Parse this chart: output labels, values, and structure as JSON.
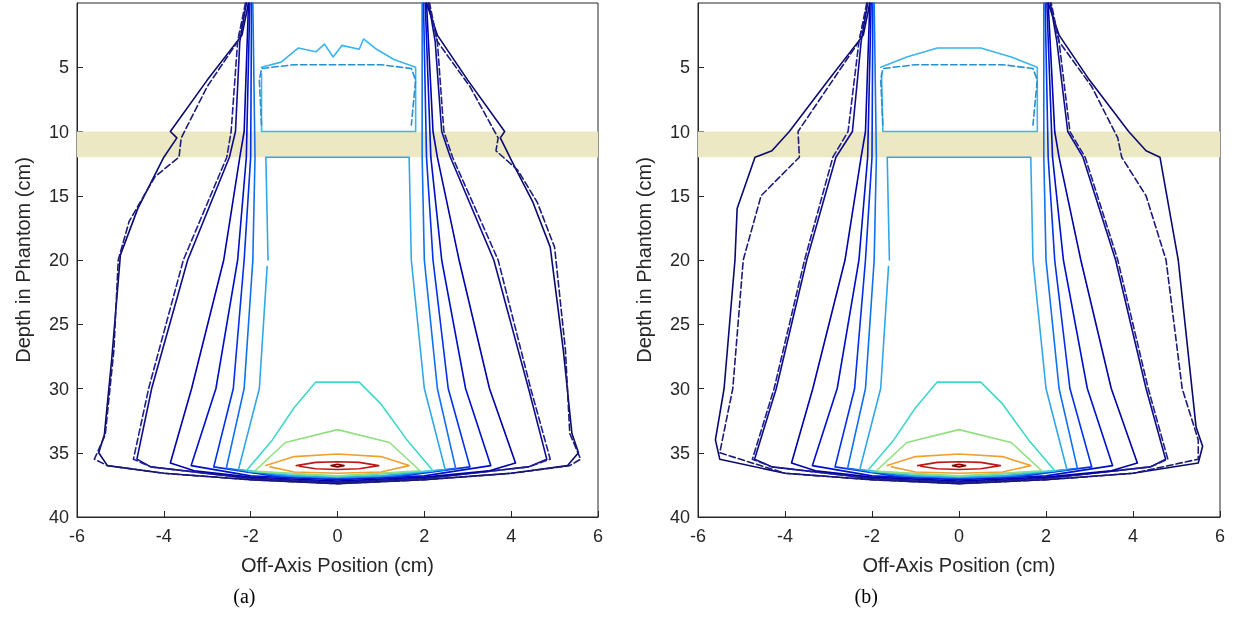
{
  "chart_data": [
    {
      "type": "line",
      "xlabel": "Off-Axis Position (cm)",
      "ylabel": "Depth in Phantom (cm)",
      "annotations": [
        "(a)"
      ],
      "xlim": [
        -6,
        6
      ],
      "xticks": [
        -6,
        -4,
        -2,
        0,
        2,
        4,
        6
      ],
      "ylim": [
        40,
        0
      ],
      "yticks": [
        5,
        10,
        15,
        20,
        25,
        30,
        35,
        40
      ],
      "grid": false,
      "marker": "none",
      "bands": [
        {
          "axis": "y",
          "from": 10,
          "to": 12,
          "color": "#ece8c4"
        }
      ],
      "series": [
        {
          "color": "#0a0a6e",
          "line_style": "solid",
          "x": [
            -2.05,
            -2.2,
            -3.0,
            -3.85,
            -3.7,
            -4.0,
            -4.6,
            -5.0,
            -5.2,
            -5.37,
            -5.5,
            -5.3,
            -4,
            -2,
            0,
            2,
            4,
            5.3,
            5.55,
            5.4,
            5.2,
            4.9,
            4.5,
            4.0,
            3.75,
            3.85,
            3.0,
            2.3,
            2.05
          ],
          "values": [
            0,
            2.5,
            6,
            10,
            10.5,
            12,
            16,
            19.6,
            27.7,
            33.6,
            35,
            36,
            36.6,
            37.1,
            37.4,
            37.1,
            36.6,
            36,
            35,
            33.5,
            27,
            19,
            15.5,
            12.2,
            10.5,
            10,
            6,
            2.5,
            0
          ]
        },
        {
          "color": "#1c1c78",
          "line_style": "dashed",
          "x": [
            -2.1,
            -2.3,
            -3.0,
            -3.6,
            -3.65,
            -4.2,
            -4.8,
            -5.05,
            -5.15,
            -5.35,
            -5.6,
            -5.3,
            -4,
            -2,
            0,
            2,
            4,
            5.35,
            5.6,
            5.35,
            5.25,
            5.0,
            4.6,
            4.15,
            3.65,
            3.7,
            3.05,
            2.3,
            2.1
          ],
          "values": [
            0,
            3,
            6.5,
            10.5,
            12,
            13.5,
            17,
            20,
            27,
            33.6,
            35.5,
            36,
            36.6,
            37.1,
            37.4,
            37.1,
            36.6,
            36,
            35.5,
            33.5,
            27,
            19,
            15.5,
            13,
            11.5,
            10.5,
            6.5,
            3,
            0
          ]
        },
        {
          "color": "#0d0d8a",
          "line_style": "solid",
          "x": [
            -2.1,
            -2.25,
            -2.35,
            -2.49,
            -3.45,
            -4.28,
            -4.62,
            -4.3,
            -2,
            0,
            2,
            4.4,
            4.82,
            4.4,
            3.6,
            2.6,
            2.4,
            2.25,
            2.1
          ],
          "values": [
            0,
            3,
            10,
            12,
            20,
            30,
            35.5,
            36.1,
            37,
            37.3,
            37,
            36.1,
            35.5,
            30,
            20,
            12,
            10,
            3,
            0
          ]
        },
        {
          "color": "#202094",
          "line_style": "dashed",
          "x": [
            -2.12,
            -2.3,
            -2.45,
            -2.55,
            -3.55,
            -4.35,
            -4.7,
            -4.3,
            -2,
            0,
            2,
            4.4,
            4.9,
            4.45,
            3.7,
            2.65,
            2.45,
            2.3,
            2.12
          ],
          "values": [
            0,
            3,
            10,
            12,
            20,
            30,
            35.5,
            36.1,
            37,
            37.3,
            37,
            36.1,
            35.5,
            30,
            20,
            12,
            10,
            3,
            0
          ]
        },
        {
          "color": "#0000a8",
          "line_style": "solid",
          "x": [
            -2.05,
            -2.15,
            -2.25,
            -2.62,
            -3.36,
            -3.85,
            -3.3,
            -2,
            0,
            2,
            3.5,
            4.1,
            3.5,
            2.8,
            2.3,
            2.2,
            2.05
          ],
          "values": [
            0,
            10,
            12,
            20,
            30,
            35.8,
            36.4,
            36.9,
            37.2,
            36.9,
            36.4,
            35.8,
            30,
            20,
            12,
            10,
            0
          ]
        },
        {
          "color": "#0010c8",
          "line_style": "solid",
          "x": [
            -2.02,
            -2.1,
            -2.3,
            -2.8,
            -3.37,
            -2,
            0,
            2,
            3.53,
            2.95,
            2.4,
            2.15,
            2.02
          ],
          "values": [
            0,
            12,
            20,
            30,
            36,
            36.8,
            37.1,
            36.8,
            36,
            30,
            20,
            12,
            0
          ]
        },
        {
          "color": "#0030e8",
          "line_style": "solid",
          "x": [
            -1.98,
            -2.0,
            -2.15,
            -2.4,
            -2.85,
            -1.5,
            0,
            1.5,
            3.05,
            2.55,
            2.2,
            2.05,
            1.98
          ],
          "values": [
            0,
            12,
            20,
            30,
            36.1,
            36.8,
            37.0,
            36.8,
            36.1,
            30,
            20,
            12,
            0
          ]
        },
        {
          "color": "#1070f0",
          "line_style": "solid",
          "x": [
            -1.95,
            -1.9,
            -1.95,
            -2.15,
            -2.56,
            -1.3,
            0,
            1.3,
            2.72,
            2.3,
            2.0,
            1.95,
            1.95
          ],
          "values": [
            0,
            12,
            20,
            30,
            36.2,
            36.8,
            36.95,
            36.8,
            36.2,
            30,
            20,
            12,
            0
          ]
        },
        {
          "color": "#30a8e8",
          "line_style": "solid",
          "x": [
            -1.6,
            -1.65,
            1.65,
            1.7,
            2.0,
            2.48,
            1,
            0,
            -1,
            -2.28,
            -1.8,
            -1.62
          ],
          "values": [
            20,
            12,
            12,
            20,
            30,
            36.3,
            36.8,
            36.9,
            36.8,
            36.3,
            30,
            20.5
          ]
        },
        {
          "color": "#3cb4ec",
          "line_style": "solid",
          "x": [
            -1.75,
            -1.3,
            -0.9,
            -0.5,
            -0.3,
            -0.1,
            0.1,
            0.5,
            0.6,
            0.9,
            1.3,
            1.8,
            1.8,
            -1.75,
            -1.75
          ],
          "values": [
            5,
            4.6,
            3.5,
            3.8,
            3.2,
            4.2,
            3.3,
            3.6,
            2.8,
            3.6,
            4.4,
            5,
            10,
            10,
            5.5
          ]
        },
        {
          "color": "#2890d0",
          "line_style": "dashed",
          "x": [
            -1.75,
            -1.8,
            -1.75,
            -1,
            0,
            1,
            1.7,
            1.8,
            1.7
          ],
          "values": [
            9.5,
            6,
            5.1,
            4.8,
            4.8,
            4.8,
            5.1,
            6,
            9.5
          ]
        },
        {
          "color": "#40d8c8",
          "line_style": "solid",
          "x": [
            -2.1,
            -1.5,
            -1.0,
            -0.5,
            0.5,
            1.0,
            1.6,
            2.2,
            0,
            -2.05
          ],
          "values": [
            36.4,
            34,
            31.5,
            29.5,
            29.5,
            31.2,
            34,
            36.4,
            36.85,
            36.45
          ]
        },
        {
          "color": "#90e080",
          "line_style": "solid",
          "x": [
            -1.9,
            -1.2,
            0,
            1.2,
            1.9,
            0,
            -1.85
          ],
          "values": [
            36.4,
            34.2,
            33.2,
            34.2,
            36.4,
            36.8,
            36.45
          ]
        },
        {
          "color": "#f0a030",
          "line_style": "solid",
          "x": [
            -1.65,
            -1,
            0,
            1,
            1.65,
            1,
            0,
            -1,
            -1.55
          ],
          "values": [
            36,
            35.3,
            35.1,
            35.3,
            36,
            36.5,
            36.6,
            36.5,
            36.1
          ]
        },
        {
          "color": "#c01818",
          "line_style": "solid",
          "x": [
            -0.95,
            -0.5,
            0,
            0.5,
            0.95,
            0.5,
            0,
            -0.5,
            -0.88
          ],
          "values": [
            36,
            35.75,
            35.7,
            35.75,
            36,
            36.25,
            36.3,
            36.25,
            36.05
          ]
        },
        {
          "color": "#800000",
          "line_style": "solid",
          "x": [
            -0.15,
            0,
            0.15,
            0,
            -0.12
          ],
          "values": [
            36,
            35.9,
            36,
            36.1,
            36.03
          ]
        }
      ]
    },
    {
      "type": "line",
      "xlabel": "Off-Axis Position (cm)",
      "ylabel": "Depth in Phantom (cm)",
      "annotations": [
        "(b)"
      ],
      "xlim": [
        -6,
        6
      ],
      "xticks": [
        -6,
        -4,
        -2,
        0,
        2,
        4,
        6
      ],
      "ylim": [
        40,
        0
      ],
      "yticks": [
        5,
        10,
        15,
        20,
        25,
        30,
        35,
        40
      ],
      "grid": false,
      "marker": "none",
      "bands": [
        {
          "axis": "y",
          "from": 10,
          "to": 12,
          "color": "#ece8c4"
        }
      ],
      "series": [
        {
          "color": "#0a0a6e",
          "line_style": "solid",
          "x": [
            -2.05,
            -2.2,
            -3.0,
            -3.9,
            -4.3,
            -4.69,
            -5.1,
            -5.15,
            -5.4,
            -5.6,
            -5.5,
            -4,
            -2,
            0,
            2,
            4,
            5.5,
            5.6,
            5.45,
            5.04,
            4.62,
            4.3,
            3.9,
            3.0,
            2.3,
            2.05
          ],
          "values": [
            0,
            2.5,
            6,
            10,
            11.5,
            12,
            16,
            20,
            30,
            34,
            35.5,
            36.6,
            37.1,
            37.4,
            37.1,
            36.6,
            35.8,
            34.5,
            33,
            20,
            12,
            11.5,
            10,
            6,
            2.5,
            0
          ]
        },
        {
          "color": "#1c1c78",
          "line_style": "dashed",
          "x": [
            -2.1,
            -2.3,
            -3.0,
            -3.7,
            -3.67,
            -4.55,
            -4.96,
            -5.2,
            -5.5,
            -4,
            -2,
            0,
            2,
            4,
            5.5,
            5.5,
            5.13,
            4.76,
            4.3,
            3.74,
            3.65,
            3.05,
            2.3,
            2.1
          ],
          "values": [
            0,
            3,
            6.5,
            10,
            12,
            15,
            20,
            30,
            35,
            36.6,
            37.1,
            37.4,
            37.1,
            36.6,
            35.5,
            34,
            30,
            20,
            15,
            12,
            10.5,
            6.5,
            3,
            0
          ]
        },
        {
          "color": "#0d0d8a",
          "line_style": "solid",
          "x": [
            -2.1,
            -2.25,
            -2.45,
            -2.83,
            -3.5,
            -4.2,
            -4.7,
            -4.3,
            -2,
            0,
            2,
            4.4,
            4.75,
            4.3,
            3.6,
            2.85,
            2.5,
            2.25,
            2.1
          ],
          "values": [
            0,
            3,
            10,
            12,
            20,
            30,
            35.5,
            36.1,
            37,
            37.3,
            37,
            36.1,
            35.5,
            30,
            20,
            12,
            10,
            3,
            0
          ]
        },
        {
          "color": "#202094",
          "line_style": "dashed",
          "x": [
            -2.12,
            -2.3,
            -2.55,
            -2.9,
            -3.55,
            -4.25,
            -4.75,
            -4.3,
            -2,
            0,
            2,
            4.4,
            4.8,
            4.35,
            3.65,
            2.9,
            2.55,
            2.3,
            2.12
          ],
          "values": [
            0,
            3,
            10,
            12,
            20,
            30,
            35.5,
            36.1,
            37,
            37.3,
            37,
            36.1,
            35.5,
            30,
            20,
            12,
            10,
            3,
            0
          ]
        },
        {
          "color": "#0000a8",
          "line_style": "solid",
          "x": [
            -2.05,
            -2.15,
            -2.25,
            -2.62,
            -3.36,
            -3.85,
            -3.3,
            -2,
            0,
            2,
            3.5,
            4.1,
            3.5,
            2.8,
            2.3,
            2.2,
            2.05
          ],
          "values": [
            0,
            10,
            12,
            20,
            30,
            35.8,
            36.4,
            36.9,
            37.2,
            36.9,
            36.4,
            35.8,
            30,
            20,
            12,
            10,
            0
          ]
        },
        {
          "color": "#0010c8",
          "line_style": "solid",
          "x": [
            -2.02,
            -2.1,
            -2.3,
            -2.8,
            -3.37,
            -2,
            0,
            2,
            3.53,
            2.95,
            2.4,
            2.15,
            2.02
          ],
          "values": [
            0,
            12,
            20,
            30,
            36,
            36.8,
            37.1,
            36.8,
            36,
            30,
            20,
            12,
            0
          ]
        },
        {
          "color": "#0030e8",
          "line_style": "solid",
          "x": [
            -1.98,
            -2.0,
            -2.15,
            -2.4,
            -2.85,
            -1.5,
            0,
            1.5,
            3.05,
            2.55,
            2.2,
            2.05,
            1.98
          ],
          "values": [
            0,
            12,
            20,
            30,
            36.1,
            36.8,
            37.0,
            36.8,
            36.1,
            30,
            20,
            12,
            0
          ]
        },
        {
          "color": "#1070f0",
          "line_style": "solid",
          "x": [
            -1.95,
            -1.9,
            -1.95,
            -2.15,
            -2.56,
            -1.3,
            0,
            1.3,
            2.72,
            2.3,
            2.0,
            1.95,
            1.95
          ],
          "values": [
            0,
            12,
            20,
            30,
            36.2,
            36.8,
            36.95,
            36.8,
            36.2,
            30,
            20,
            12,
            0
          ]
        },
        {
          "color": "#30a8e8",
          "line_style": "solid",
          "x": [
            -1.6,
            -1.65,
            1.65,
            1.7,
            2.0,
            2.48,
            1,
            0,
            -1,
            -2.28,
            -1.8,
            -1.62
          ],
          "values": [
            20,
            12,
            12,
            20,
            30,
            36.3,
            36.8,
            36.9,
            36.8,
            36.3,
            30,
            20.5
          ]
        },
        {
          "color": "#3cb4ec",
          "line_style": "solid",
          "x": [
            -1.8,
            -1.2,
            -0.5,
            0.5,
            1.2,
            1.8,
            1.8,
            -1.75,
            -1.78
          ],
          "values": [
            5,
            4.2,
            3.5,
            3.5,
            4.2,
            5,
            10,
            10,
            5.5
          ]
        },
        {
          "color": "#2890d0",
          "line_style": "dashed",
          "x": [
            -1.75,
            -1.8,
            -1.75,
            -1,
            0,
            1,
            1.7,
            1.8,
            1.7
          ],
          "values": [
            9.5,
            6,
            5.1,
            4.8,
            4.8,
            4.8,
            5.1,
            6,
            9.5
          ]
        },
        {
          "color": "#40d8c8",
          "line_style": "solid",
          "x": [
            -2.1,
            -1.5,
            -1.0,
            -0.5,
            0.5,
            1.0,
            1.6,
            2.2,
            0,
            -2.05
          ],
          "values": [
            36.4,
            34,
            31.5,
            29.5,
            29.5,
            31.2,
            34,
            36.4,
            36.85,
            36.45
          ]
        },
        {
          "color": "#90e080",
          "line_style": "solid",
          "x": [
            -1.9,
            -1.2,
            0,
            1.2,
            1.9,
            0,
            -1.85
          ],
          "values": [
            36.4,
            34.2,
            33.2,
            34.2,
            36.4,
            36.8,
            36.45
          ]
        },
        {
          "color": "#f0a030",
          "line_style": "solid",
          "x": [
            -1.65,
            -1,
            0,
            1,
            1.65,
            1,
            0,
            -1,
            -1.55
          ],
          "values": [
            36,
            35.3,
            35.1,
            35.3,
            36,
            36.5,
            36.6,
            36.5,
            36.1
          ]
        },
        {
          "color": "#c01818",
          "line_style": "solid",
          "x": [
            -0.95,
            -0.5,
            0,
            0.5,
            0.95,
            0.5,
            0,
            -0.5,
            -0.88
          ],
          "values": [
            36,
            35.75,
            35.7,
            35.75,
            36,
            36.25,
            36.3,
            36.25,
            36.05
          ]
        },
        {
          "color": "#800000",
          "line_style": "solid",
          "x": [
            -0.15,
            0,
            0.15,
            0,
            -0.12
          ],
          "values": [
            36,
            35.9,
            36,
            36.1,
            36.03
          ]
        }
      ]
    }
  ]
}
